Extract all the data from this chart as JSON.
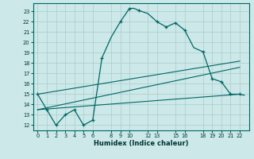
{
  "title": "",
  "xlabel": "Humidex (Indice chaleur)",
  "bg_color": "#cce8e8",
  "grid_color": "#aacccc",
  "line_color": "#006666",
  "xlim": [
    -0.5,
    23.0
  ],
  "ylim": [
    11.5,
    23.8
  ],
  "xticks": [
    0,
    1,
    2,
    3,
    4,
    5,
    6,
    8,
    9,
    10,
    12,
    13,
    15,
    16,
    18,
    19,
    20,
    21,
    22
  ],
  "xtick_labels": [
    "0",
    "1",
    "2",
    "3",
    "4",
    "5",
    "6",
    "8",
    "9",
    "10",
    "12",
    "13",
    "15",
    "16",
    "18",
    "19",
    "20",
    "21",
    "22"
  ],
  "yticks": [
    12,
    13,
    14,
    15,
    16,
    17,
    18,
    19,
    20,
    21,
    22,
    23
  ],
  "main_curve_x": [
    0,
    1,
    2,
    3,
    4,
    5,
    6,
    7,
    8,
    9,
    10,
    10.5,
    11,
    12,
    13,
    14,
    15,
    16,
    17,
    18,
    19,
    20,
    21,
    22,
    22.5
  ],
  "main_curve_y": [
    15.0,
    13.5,
    12.0,
    13.0,
    13.5,
    12.0,
    12.5,
    18.5,
    20.5,
    22.0,
    23.3,
    23.3,
    23.1,
    22.8,
    22.0,
    21.5,
    21.9,
    21.2,
    19.5,
    19.1,
    16.5,
    16.2,
    15.0,
    15.0,
    14.9
  ],
  "trend_line1_x": [
    0,
    22
  ],
  "trend_line1_y": [
    15.0,
    18.2
  ],
  "trend_line2_x": [
    0,
    22
  ],
  "trend_line2_y": [
    13.5,
    17.6
  ],
  "trend_line3_x": [
    0,
    22
  ],
  "trend_line3_y": [
    13.5,
    15.0
  ],
  "marker_x": [
    0,
    1,
    2,
    3,
    4,
    5,
    6,
    7,
    9,
    10,
    11,
    13,
    14,
    15,
    16,
    18,
    19,
    20,
    21,
    22
  ],
  "marker_y": [
    15.0,
    13.5,
    12.0,
    13.0,
    13.5,
    12.0,
    12.5,
    18.5,
    22.0,
    23.3,
    23.1,
    22.0,
    21.5,
    21.9,
    21.2,
    19.1,
    16.5,
    16.2,
    15.0,
    15.0
  ]
}
